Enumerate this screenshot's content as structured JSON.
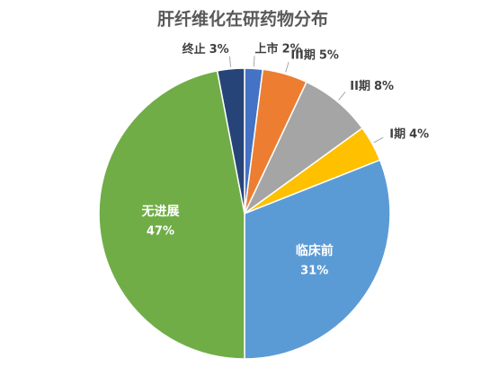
{
  "chart_data": {
    "type": "pie",
    "title": "肝纤维化在研药物分布",
    "categories": [
      "上市",
      "III期",
      "II期",
      "I期",
      "临床前",
      "无进展",
      "终止"
    ],
    "values": [
      2,
      5,
      8,
      4,
      31,
      47,
      3
    ],
    "value_labels": [
      "2%",
      "5%",
      "8%",
      "4%",
      "31%",
      "47%",
      "3%"
    ],
    "colors": [
      "#4472c4",
      "#ed7d31",
      "#a5a5a5",
      "#ffc000",
      "#5b9bd5",
      "#70ad47",
      "#264478"
    ]
  }
}
